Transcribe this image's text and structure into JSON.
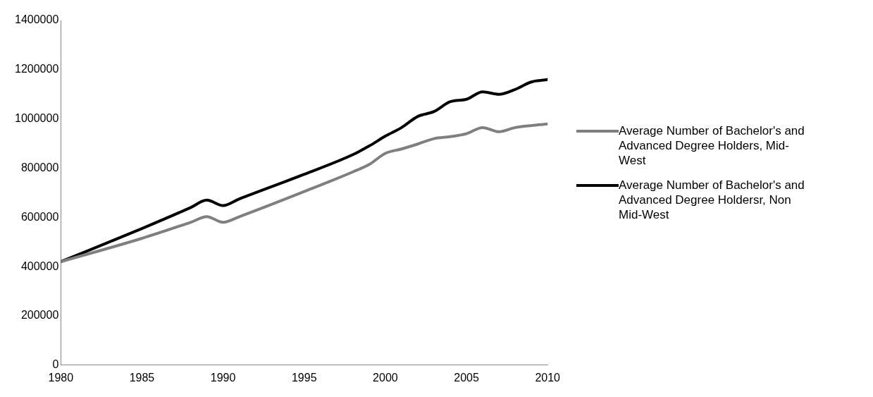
{
  "chart_data": {
    "type": "line",
    "xlim": [
      1980,
      2010
    ],
    "xticks": [
      1980,
      1985,
      1990,
      1995,
      2000,
      2005,
      2010
    ],
    "ylim": [
      0,
      1400000
    ],
    "yticks": [
      0,
      200000,
      400000,
      600000,
      800000,
      1000000,
      1200000,
      1400000
    ],
    "grid": false,
    "legend": "right",
    "marker": "none",
    "line_style": "solid",
    "series": [
      {
        "name": "Average Number of Bachelor's and Advanced Degree Holders, Mid-West",
        "color": "#7f7f7f",
        "x": [
          1980,
          1985,
          1988,
          1989,
          1990,
          1991,
          1995,
          1998,
          1999,
          2000,
          2001,
          2002,
          2003,
          2004,
          2005,
          2006,
          2007,
          2008,
          2010
        ],
        "values": [
          420000,
          515000,
          580000,
          603000,
          580000,
          603000,
          705000,
          785000,
          815000,
          860000,
          878000,
          898000,
          920000,
          928000,
          940000,
          965000,
          948000,
          965000,
          980000
        ]
      },
      {
        "name": "Average Number of Bachelor's and Advanced Degree Holdersr, Non Mid-West",
        "color": "#000000",
        "x": [
          1980,
          1985,
          1988,
          1989,
          1990,
          1991,
          1995,
          1998,
          1999,
          2000,
          2001,
          2002,
          2003,
          2004,
          2005,
          2006,
          2007,
          2008,
          2009,
          2010
        ],
        "values": [
          420000,
          555000,
          640000,
          670000,
          648000,
          675000,
          775000,
          855000,
          890000,
          930000,
          965000,
          1010000,
          1030000,
          1070000,
          1080000,
          1110000,
          1100000,
          1120000,
          1150000,
          1160000
        ]
      }
    ]
  }
}
